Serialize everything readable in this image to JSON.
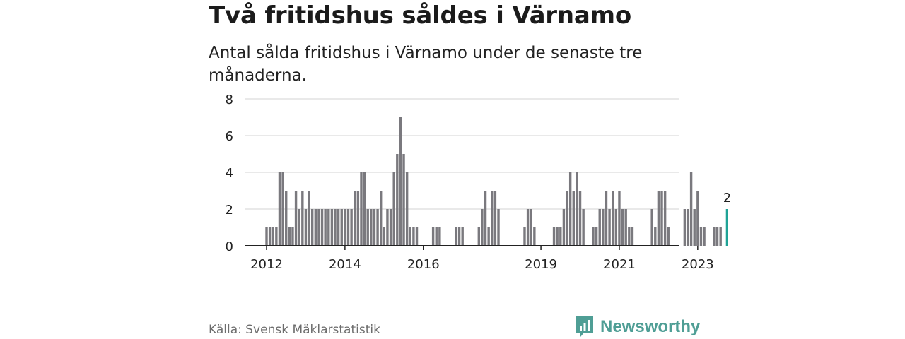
{
  "header": {
    "title": "Två fritidshus såldes i Värnamo",
    "subtitle": "Antal sålda fritidshus i Värnamo under de senaste tre månaderna."
  },
  "footer": {
    "source": "Källa: Svensk Mäklarstatistik",
    "brand": "Newsworthy"
  },
  "colors": {
    "bar": "#7a797e",
    "highlight": "#1fa396",
    "grid": "#dcdcdc",
    "axis": "#222222",
    "brand": "#4f9e95"
  },
  "chart_data": {
    "type": "bar",
    "title": "Två fritidshus såldes i Värnamo",
    "subtitle": "Antal sålda fritidshus i Värnamo under de senaste tre månaderna.",
    "xlabel": "",
    "ylabel": "",
    "ylim": [
      0,
      8
    ],
    "yticks": [
      0,
      2,
      4,
      6,
      8
    ],
    "xtick_labels": [
      "2012",
      "2014",
      "2016",
      "2019",
      "2021",
      "2023"
    ],
    "grid": true,
    "legend": "none",
    "granularity": "rolling three-month totals, monthly",
    "x_start": "2012-01",
    "x_end": "2023-03",
    "values": [
      1,
      1,
      1,
      1,
      4,
      4,
      3,
      1,
      1,
      3,
      2,
      3,
      2,
      3,
      2,
      2,
      2,
      2,
      2,
      2,
      2,
      2,
      2,
      2,
      2,
      2,
      2,
      3,
      3,
      4,
      4,
      2,
      2,
      2,
      2,
      3,
      1,
      2,
      2,
      4,
      5,
      7,
      5,
      4,
      1,
      1,
      1,
      0,
      0,
      0,
      0,
      1,
      1,
      1,
      0,
      0,
      0,
      0,
      1,
      1,
      1,
      0,
      0,
      0,
      0,
      1,
      2,
      3,
      1,
      3,
      3,
      2,
      0,
      0,
      0,
      0,
      0,
      0,
      0,
      1,
      2,
      2,
      1,
      0,
      0,
      0,
      0,
      0,
      1,
      1,
      1,
      2,
      3,
      4,
      3,
      4,
      3,
      2,
      0,
      0,
      1,
      1,
      2,
      2,
      3,
      2,
      3,
      2,
      3,
      2,
      2,
      1,
      1,
      0,
      0,
      0,
      0,
      0,
      2,
      1,
      3,
      3,
      3,
      1,
      0,
      0,
      0,
      0,
      2,
      2,
      4,
      2,
      3,
      1,
      1,
      0,
      0,
      1,
      1,
      1,
      0,
      2
    ],
    "highlight_value_label": "2"
  }
}
